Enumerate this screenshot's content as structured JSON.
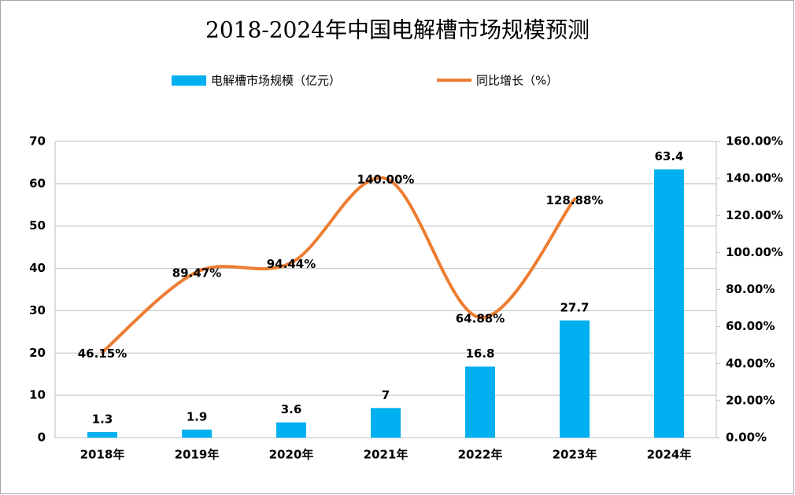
{
  "chart_data": {
    "type": "bar",
    "title": "2018-2024年中国电解槽市场规模预测",
    "categories": [
      "2018年",
      "2019年",
      "2020年",
      "2021年",
      "2022年",
      "2023年",
      "2024年"
    ],
    "series": [
      {
        "name": "电解槽市场规模（亿元）",
        "type": "bar",
        "color": "#00b0f0",
        "values": [
          1.3,
          1.9,
          3.6,
          7,
          16.8,
          27.7,
          63.4
        ]
      },
      {
        "name": "同比增长（%）",
        "type": "line",
        "axis": "y2",
        "color": "#ed7d31",
        "values": [
          46.15,
          89.47,
          94.44,
          140,
          64.88,
          128.88,
          null
        ],
        "value_labels": [
          "46.15%",
          "89.47%",
          "94.44%",
          "140.00%",
          "64.88%",
          "128.88%",
          null
        ]
      }
    ],
    "ylim": [
      0,
      70
    ],
    "yticks": [
      0,
      10,
      20,
      30,
      40,
      50,
      60,
      70
    ],
    "y2lim": [
      0,
      160
    ],
    "y2ticks": [
      {
        "value": 0,
        "label": "0.00%"
      },
      {
        "value": 20,
        "label": "20.00%"
      },
      {
        "value": 40,
        "label": "40.00%"
      },
      {
        "value": 60,
        "label": "60.00%"
      },
      {
        "value": 80,
        "label": "80.00%"
      },
      {
        "value": 100,
        "label": "100.00%"
      },
      {
        "value": 120,
        "label": "120.00%"
      },
      {
        "value": 140,
        "label": "140.00%"
      },
      {
        "value": 160,
        "label": "160.00%"
      }
    ],
    "grid": true
  }
}
